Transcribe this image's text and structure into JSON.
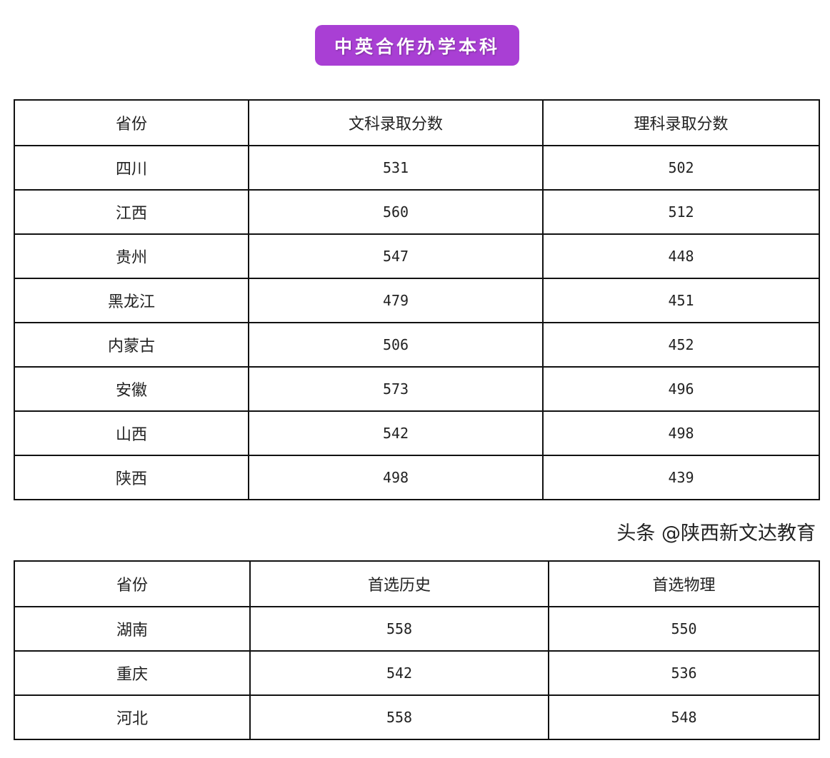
{
  "title": "中英合作办学本科",
  "table1": {
    "headers": [
      "省份",
      "文科录取分数",
      "理科录取分数"
    ],
    "rows": [
      [
        "四川",
        "531",
        "502"
      ],
      [
        "江西",
        "560",
        "512"
      ],
      [
        "贵州",
        "547",
        "448"
      ],
      [
        "黑龙江",
        "479",
        "451"
      ],
      [
        "内蒙古",
        "506",
        "452"
      ],
      [
        "安徽",
        "573",
        "496"
      ],
      [
        "山西",
        "542",
        "498"
      ],
      [
        "陕西",
        "498",
        "439"
      ]
    ]
  },
  "table2": {
    "headers": [
      "省份",
      "首选历史",
      "首选物理"
    ],
    "rows": [
      [
        "湖南",
        "558",
        "550"
      ],
      [
        "重庆",
        "542",
        "536"
      ],
      [
        "河北",
        "558",
        "548"
      ]
    ]
  },
  "watermark": "头条 @陕西新文达教育"
}
